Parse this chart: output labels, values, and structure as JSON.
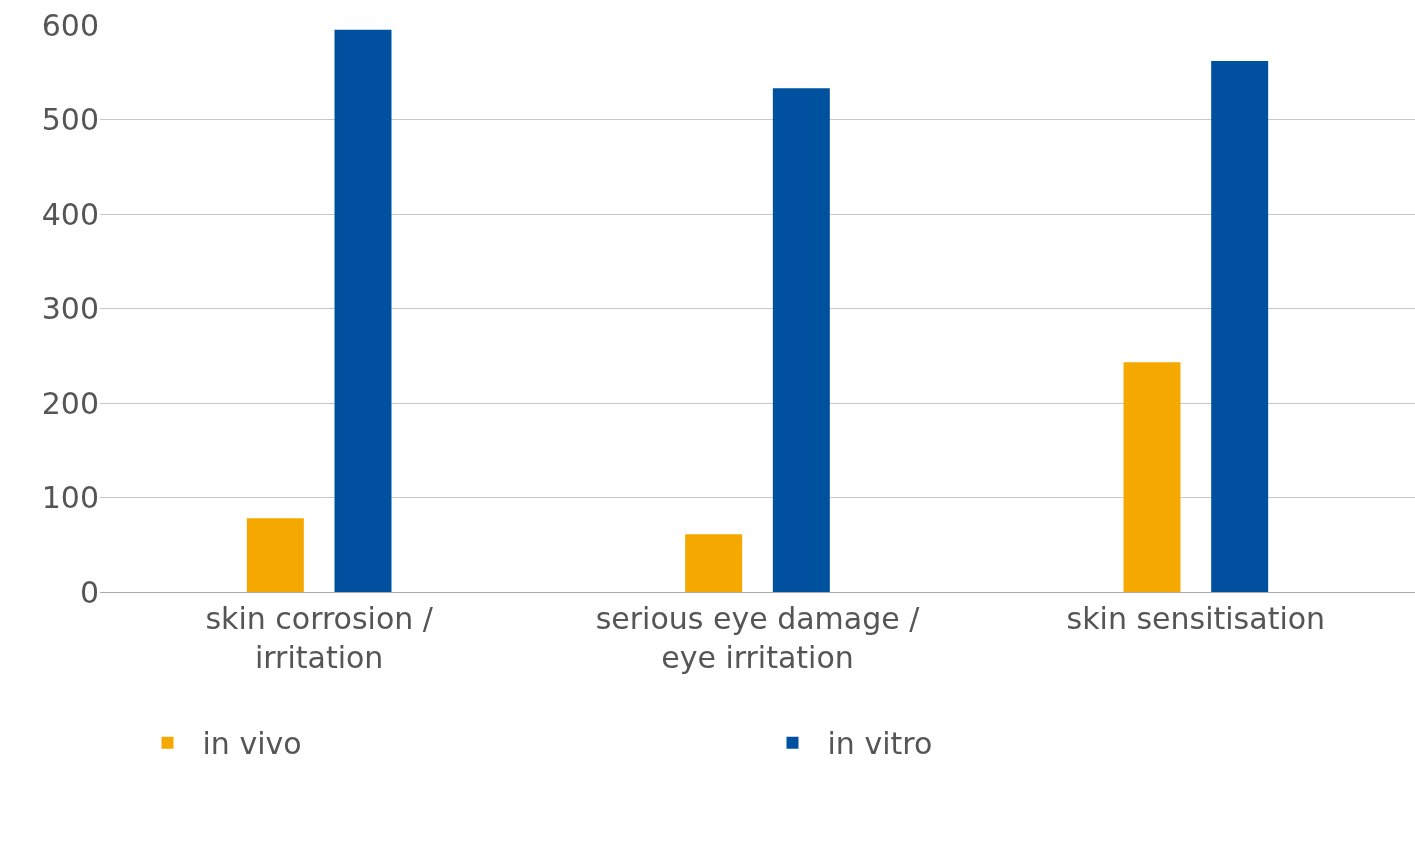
{
  "chart_data": {
    "type": "bar",
    "categories": [
      "skin corrosion / irritation",
      "serious eye damage / eye irritation",
      "skin sensitisation"
    ],
    "series": [
      {
        "name": "in vivo",
        "color": "#f5a800",
        "values": [
          78,
          61,
          243
        ]
      },
      {
        "name": "in vitro",
        "color": "#0050a0",
        "values": [
          595,
          533,
          562
        ]
      }
    ],
    "ylim": [
      0,
      600
    ],
    "yticks": [
      0,
      100,
      200,
      300,
      400,
      500,
      600
    ],
    "grid": "y",
    "legend": "bottom"
  }
}
